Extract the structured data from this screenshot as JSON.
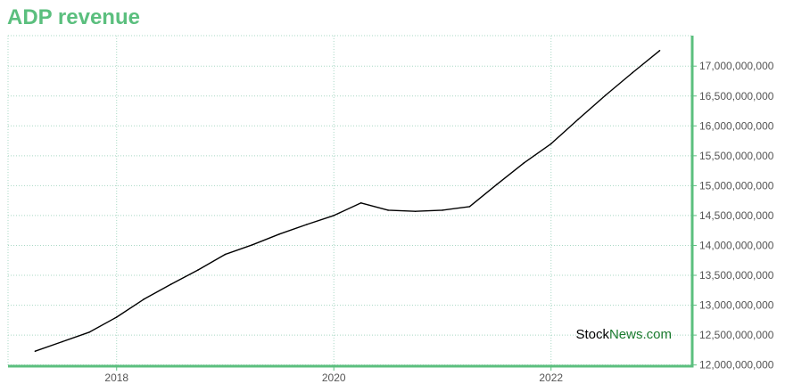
{
  "title": "ADP revenue",
  "watermark": {
    "part1": "Stock",
    "part2": "News",
    "part3": ".com"
  },
  "colors": {
    "title": "#5bbf7e",
    "axis": "#5bbf7e",
    "grid": "#a8d8c4",
    "line": "#000000"
  },
  "chart_data": {
    "type": "line",
    "title": "ADP revenue",
    "xlabel": "",
    "ylabel": "",
    "x_ticks": [
      {
        "value": 2018,
        "label": "2018"
      },
      {
        "value": 2020,
        "label": "2020"
      },
      {
        "value": 2022,
        "label": "2022"
      }
    ],
    "y_ticks": [
      {
        "value": 12000000000,
        "label": "12,000,000,000"
      },
      {
        "value": 12500000000,
        "label": "12,500,000,000"
      },
      {
        "value": 13000000000,
        "label": "13,000,000,000"
      },
      {
        "value": 13500000000,
        "label": "13,500,000,000"
      },
      {
        "value": 14000000000,
        "label": "14,000,000,000"
      },
      {
        "value": 14500000000,
        "label": "14,500,000,000"
      },
      {
        "value": 15000000000,
        "label": "15,000,000,000"
      },
      {
        "value": 15500000000,
        "label": "15,500,000,000"
      },
      {
        "value": 16000000000,
        "label": "16,000,000,000"
      },
      {
        "value": 16500000000,
        "label": "16,500,000,000"
      },
      {
        "value": 17000000000,
        "label": "17,000,000,000"
      }
    ],
    "xlim": [
      2017.0,
      2023.3
    ],
    "ylim": [
      11980000000,
      17510000000
    ],
    "grid": true,
    "series": [
      {
        "x": [
          2017.25,
          2017.5,
          2017.75,
          2018.0,
          2018.25,
          2018.5,
          2018.75,
          2019.0,
          2019.25,
          2019.5,
          2019.75,
          2020.0,
          2020.25,
          2020.5,
          2020.75,
          2021.0,
          2021.25,
          2021.5,
          2021.75,
          2022.0,
          2022.25,
          2022.5,
          2022.75,
          2023.0
        ],
        "y": [
          12230000000,
          12390000000,
          12550000000,
          12800000000,
          13100000000,
          13350000000,
          13590000000,
          13850000000,
          14010000000,
          14190000000,
          14350000000,
          14500000000,
          14710000000,
          14590000000,
          14570000000,
          14590000000,
          14650000000,
          15020000000,
          15380000000,
          15700000000,
          16110000000,
          16510000000,
          16890000000,
          17260000000
        ]
      }
    ]
  }
}
